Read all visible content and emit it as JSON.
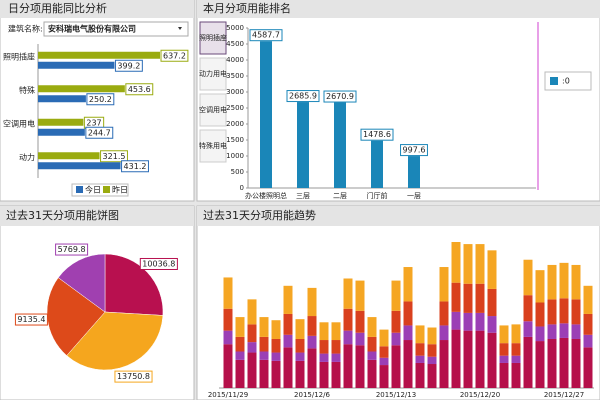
{
  "chart_data": [
    {
      "type": "hbar",
      "title": "日分项用能同比分析",
      "building_label": "建筑名称:",
      "building": "安科瑞电气股份有限公司",
      "categories": [
        "照明插座",
        "特殊",
        "空调用电",
        "动力"
      ],
      "series": [
        {
          "name": "今日",
          "color": "#2a6bb5",
          "values": [
            399.2,
            250.2,
            244.7,
            431.2
          ]
        },
        {
          "name": "昨日",
          "color": "#9aab10",
          "values": [
            637.2,
            453.6,
            237,
            321.5
          ]
        }
      ]
    },
    {
      "type": "bar",
      "title": "本月分项用能排名",
      "tabs": [
        "照明插座",
        "动力用电",
        "空调用电",
        "特殊用电"
      ],
      "categories": [
        "办公楼照明总",
        "三层",
        "二层",
        "门厅前",
        "一层"
      ],
      "series": [
        {
          "name": ":0",
          "color": "#1a86b8",
          "values": [
            4587.7,
            2685.9,
            2670.9,
            1478.6,
            997.6
          ]
        }
      ],
      "ylim": [
        0,
        5000
      ],
      "yticks": [
        0,
        500,
        1000,
        1500,
        2000,
        2500,
        3000,
        3500,
        4000,
        4500,
        5000
      ]
    },
    {
      "type": "pie",
      "title": "过去31天分项用能饼图",
      "values": [
        10036.8,
        13750.8,
        9135.4,
        5769.8
      ],
      "colors": [
        "#b8104f",
        "#f5a61e",
        "#dd4a1a",
        "#a040b0"
      ]
    },
    {
      "type": "stacked",
      "title": "过去31天分项用能趋势",
      "categories": [
        "2015/11/29",
        null,
        null,
        null,
        null,
        null,
        null,
        "2015/12/6",
        null,
        null,
        null,
        null,
        null,
        null,
        "2015/12/13",
        null,
        null,
        null,
        null,
        null,
        null,
        "2015/12/20",
        null,
        null,
        null,
        null,
        null,
        null,
        "2015/12/27",
        null,
        null
      ],
      "series": [
        {
          "color": "#b5104a",
          "values": [
            42,
            27,
            34,
            27,
            26,
            39,
            26,
            38,
            25,
            25,
            42,
            41,
            27,
            22,
            41,
            46,
            24,
            23,
            46,
            56,
            55,
            55,
            53,
            24,
            24,
            49,
            45,
            47,
            48,
            47,
            39
          ]
        },
        {
          "color": "#9b3fb5",
          "values": [
            13,
            8,
            10,
            8,
            8,
            12,
            8,
            12,
            8,
            8,
            13,
            12,
            8,
            7,
            12,
            14,
            7,
            7,
            14,
            17,
            17,
            17,
            16,
            7,
            7,
            15,
            14,
            14,
            14,
            14,
            12
          ]
        },
        {
          "color": "#d9401e",
          "values": [
            21,
            14,
            17,
            14,
            13,
            20,
            13,
            19,
            13,
            13,
            21,
            21,
            14,
            11,
            21,
            23,
            12,
            12,
            23,
            28,
            28,
            28,
            26,
            12,
            12,
            25,
            23,
            24,
            24,
            24,
            20
          ]
        },
        {
          "color": "#f5a623",
          "values": [
            30,
            19,
            24,
            19,
            18,
            27,
            19,
            27,
            17,
            17,
            29,
            29,
            19,
            16,
            29,
            33,
            17,
            16,
            33,
            39,
            38,
            38,
            37,
            17,
            18,
            34,
            31,
            33,
            34,
            33,
            27
          ]
        }
      ]
    }
  ]
}
